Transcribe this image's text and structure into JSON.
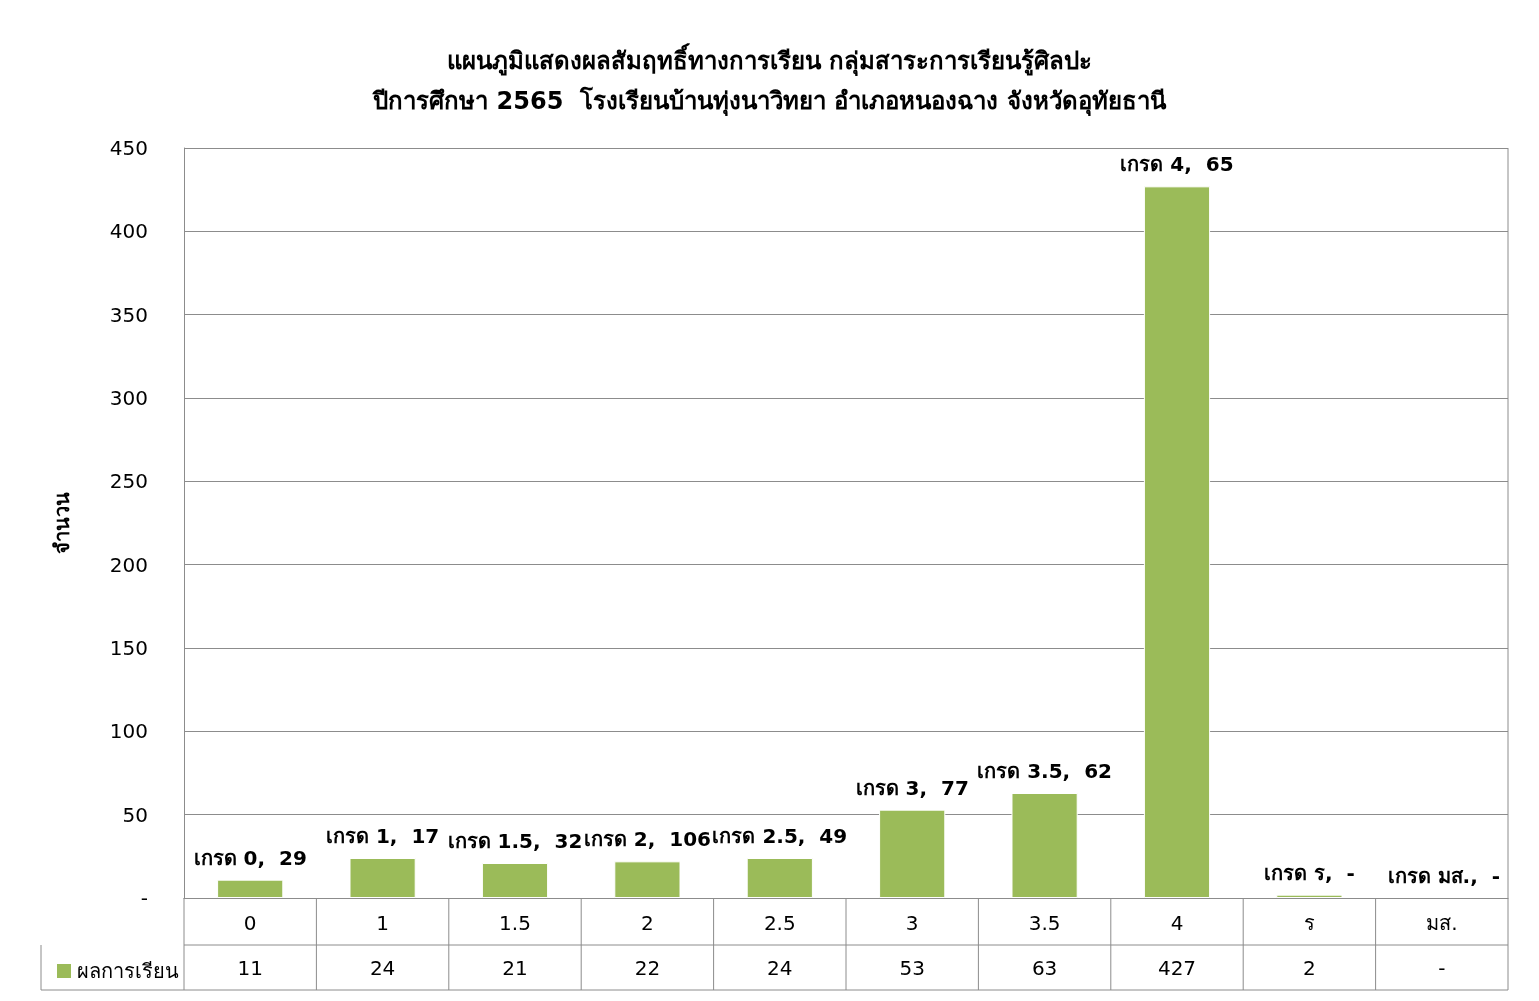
{
  "chart_data": {
    "type": "bar",
    "title": "แผนภูมิแสดงผลสัมฤทธิ์ทางการเรียน กลุ่มสาระการเรียนรู้ศิลปะ\nปีการศึกษา 2565  โรงเรียนบ้านทุ่งนาวิทยา อำเภอหนองฉาง จังหวัดอุทัยธานี",
    "ylabel": "จำนวน",
    "categories": [
      "0",
      "1",
      "1.5",
      "2",
      "2.5",
      "3",
      "3.5",
      "4",
      "ร",
      "มส."
    ],
    "series": [
      {
        "name": "ผลการเรียน",
        "color": "#9bbb59",
        "values": [
          11,
          24,
          21,
          22,
          24,
          53,
          63,
          427,
          2,
          null
        ],
        "value_labels": [
          "11",
          "24",
          "21",
          "22",
          "24",
          "53",
          "63",
          "427",
          "2",
          "-"
        ]
      }
    ],
    "ylim": [
      0,
      450
    ],
    "yticks": [
      {
        "value": 0,
        "label": "-"
      },
      50,
      100,
      150,
      200,
      250,
      300,
      350,
      400,
      450
    ],
    "grid": "y",
    "legend": "bottom left",
    "annotations": [
      {
        "text": "เกรด 0,  29",
        "x": "0",
        "y": 11
      },
      {
        "text": "เกรด 1,  17",
        "x": "1",
        "y": 24
      },
      {
        "text": "เกรด 1.5,  32",
        "x": "1.5",
        "y": 21
      },
      {
        "text": "เกรด 2,  106",
        "x": "2",
        "y": 22
      },
      {
        "text": "เกรด 2.5,  49",
        "x": "2.5",
        "y": 24
      },
      {
        "text": "เกรด 3,  77",
        "x": "3",
        "y": 53
      },
      {
        "text": "เกรด 3.5,  62",
        "x": "3.5",
        "y": 63
      },
      {
        "text": "เกรด 4,  65",
        "x": "4",
        "y": 427
      },
      {
        "text": "เกรด ร,  -",
        "x": "ร",
        "y": 2
      },
      "เกรด มส.,  -"
    ]
  }
}
